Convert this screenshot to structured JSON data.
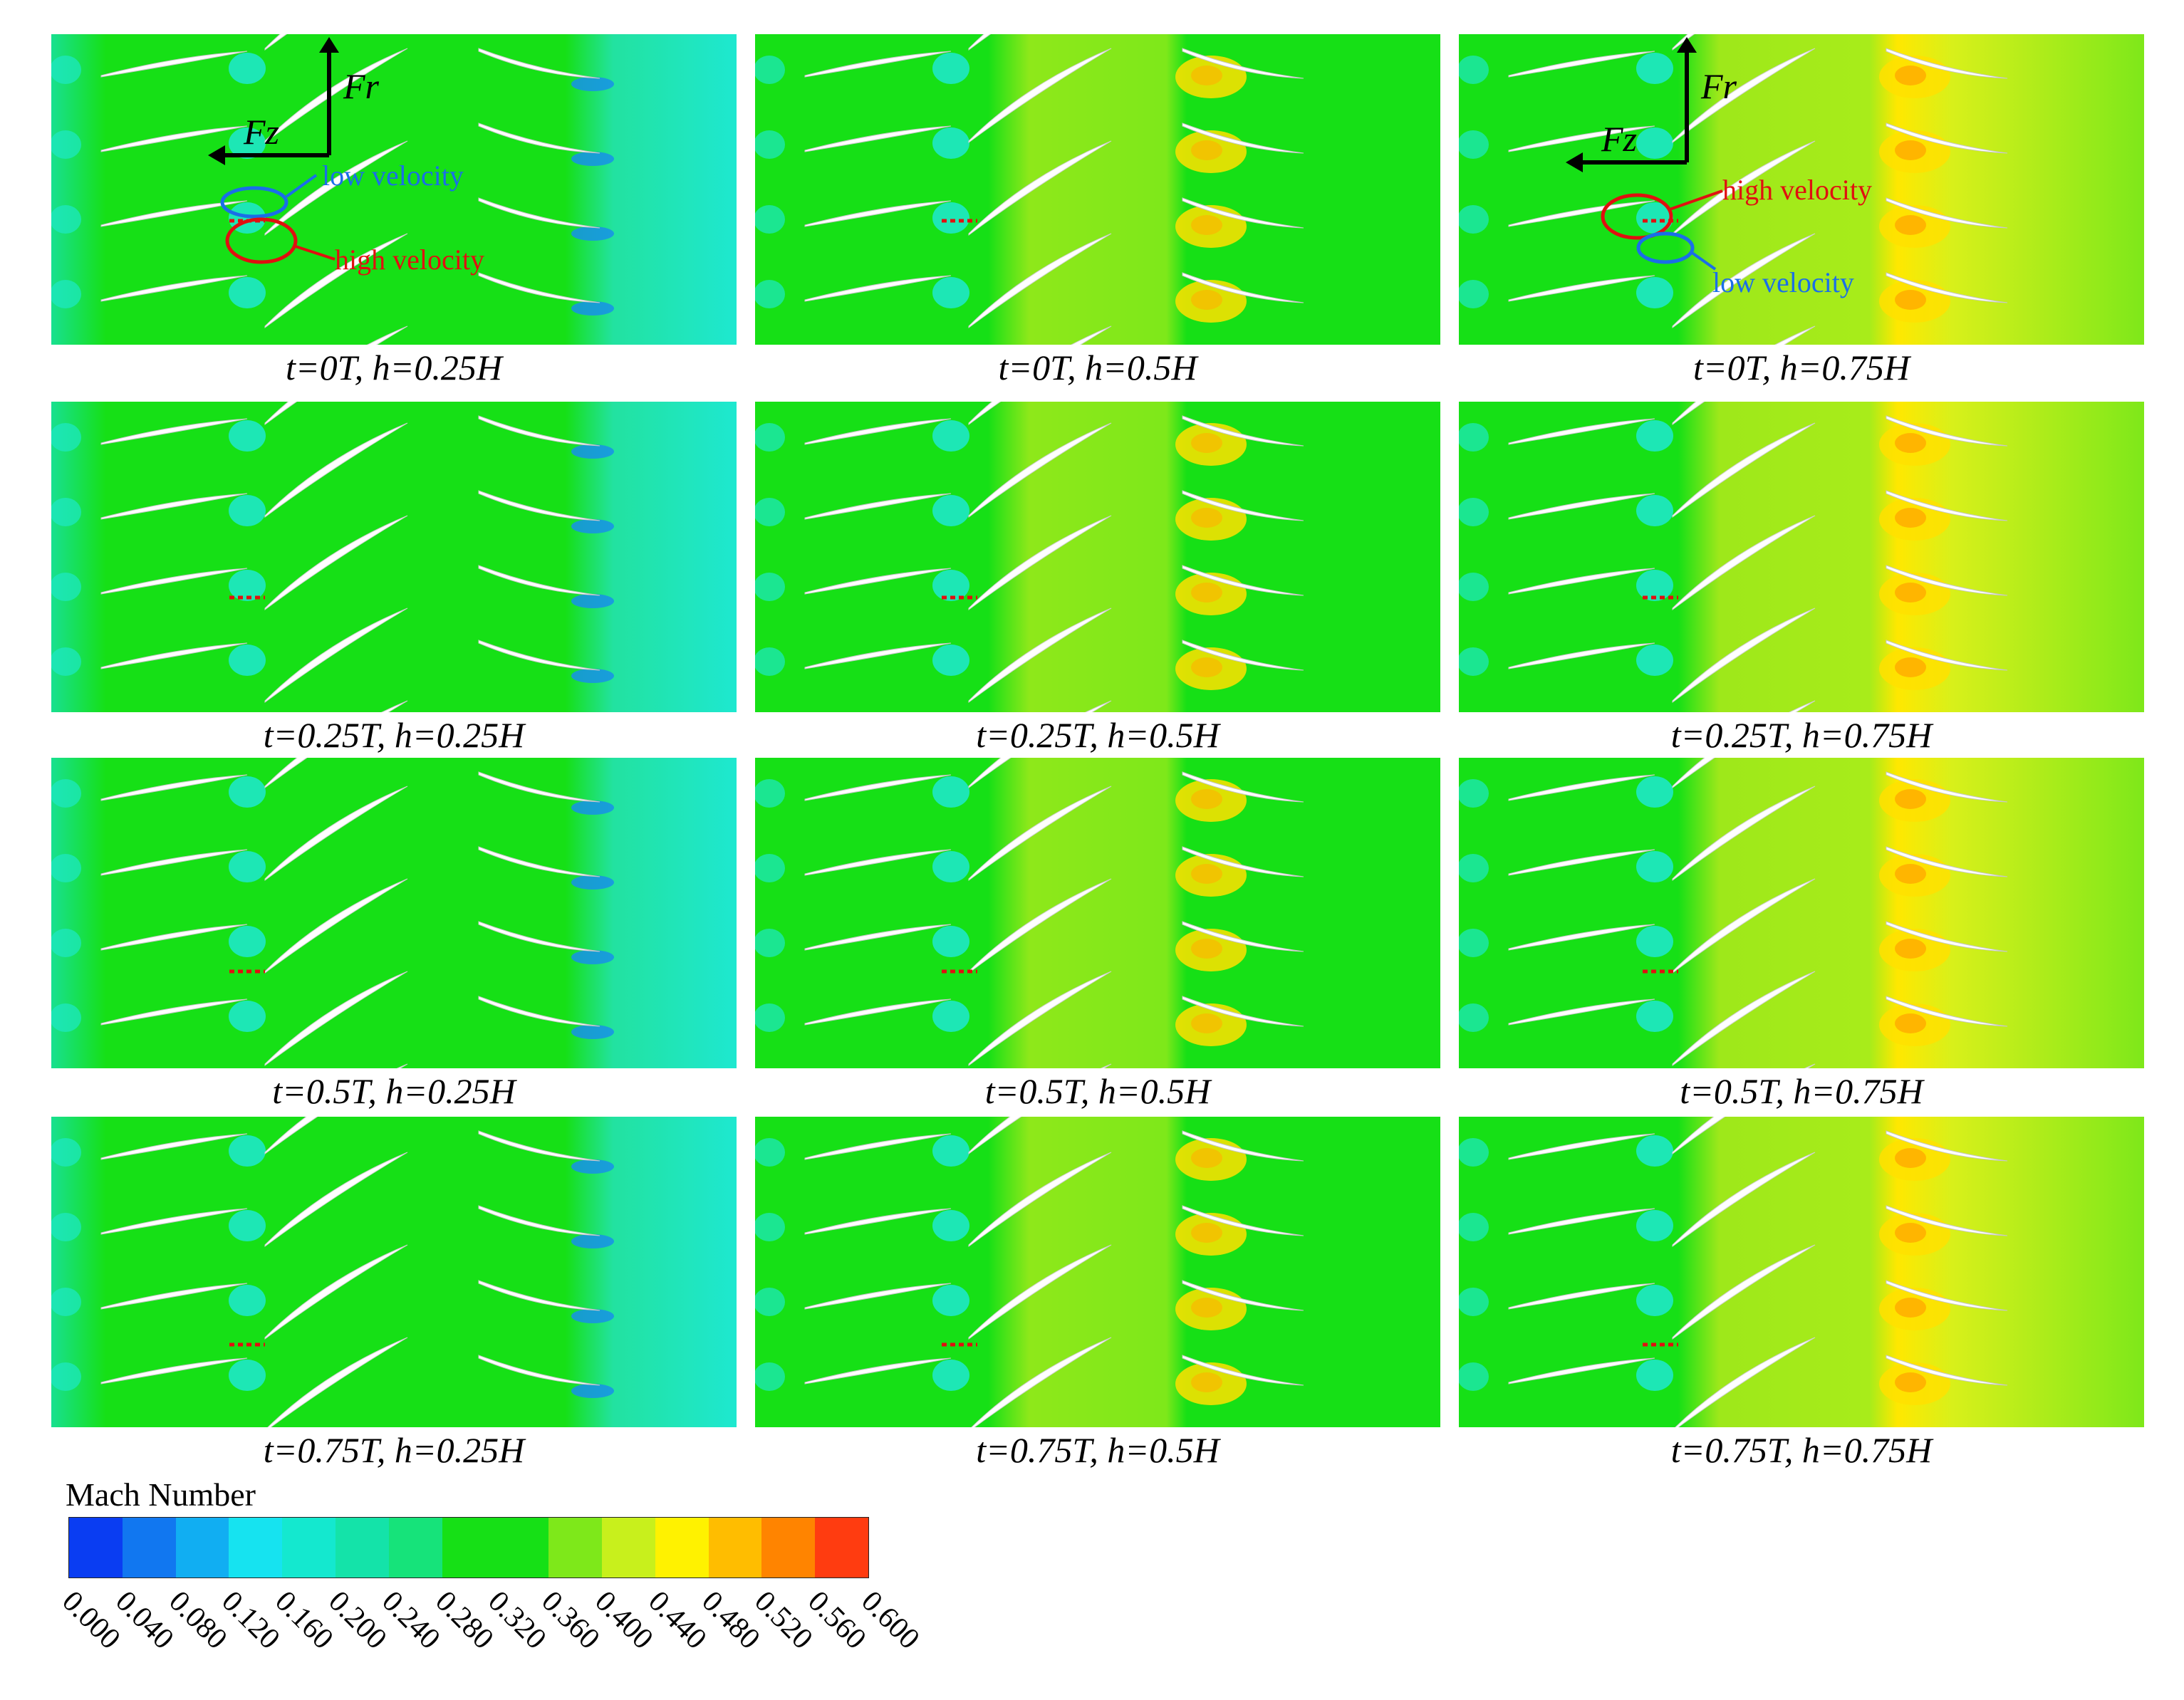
{
  "panels": [
    {
      "caption": "t=0T, h=0.25H",
      "span": 0.25,
      "phase": 0.0
    },
    {
      "caption": "t=0T, h=0.5H",
      "span": 0.5,
      "phase": 0.0
    },
    {
      "caption": "t=0T, h=0.75H",
      "span": 0.75,
      "phase": 0.0
    },
    {
      "caption": "t=0.25T, h=0.25H",
      "span": 0.25,
      "phase": 0.25
    },
    {
      "caption": "t=0.25T, h=0.5H",
      "span": 0.5,
      "phase": 0.25
    },
    {
      "caption": "t=0.25T, h=0.75H",
      "span": 0.75,
      "phase": 0.25
    },
    {
      "caption": "t=0.5T, h=0.25H",
      "span": 0.25,
      "phase": 0.5
    },
    {
      "caption": "t=0.5T, h=0.5H",
      "span": 0.5,
      "phase": 0.5
    },
    {
      "caption": "t=0.5T, h=0.75H",
      "span": 0.75,
      "phase": 0.5
    },
    {
      "caption": "t=0.75T, h=0.25H",
      "span": 0.25,
      "phase": 0.75
    },
    {
      "caption": "t=0.75T, h=0.5H",
      "span": 0.5,
      "phase": 0.75
    },
    {
      "caption": "t=0.75T, h=0.75H",
      "span": 0.75,
      "phase": 0.75
    }
  ],
  "annotations": {
    "axis_fr": "Fr",
    "axis_fz": "Fz",
    "low_velocity": "low velocity",
    "high_velocity": "high velocity"
  },
  "legend": {
    "title": "Mach Number",
    "ticks": [
      "0.000",
      "0.040",
      "0.080",
      "0.120",
      "0.160",
      "0.200",
      "0.240",
      "0.280",
      "0.320",
      "0.360",
      "0.400",
      "0.440",
      "0.480",
      "0.520",
      "0.560",
      "0.600"
    ],
    "colors": [
      "#0a3df2",
      "#1177f0",
      "#11aef2",
      "#16e3f0",
      "#14e8cf",
      "#14e3a9",
      "#16e37a",
      "#16e016",
      "#16e016",
      "#7ee81a",
      "#c8f01c",
      "#fff200",
      "#ffbd00",
      "#ff8400",
      "#ff3c10"
    ]
  },
  "colors": {
    "background_field": "#16e016",
    "low_speed": "#1ee8c6",
    "high_speed": "#ffe000",
    "marker_red": "#e01010",
    "marker_blue": "#1a6ee8"
  }
}
